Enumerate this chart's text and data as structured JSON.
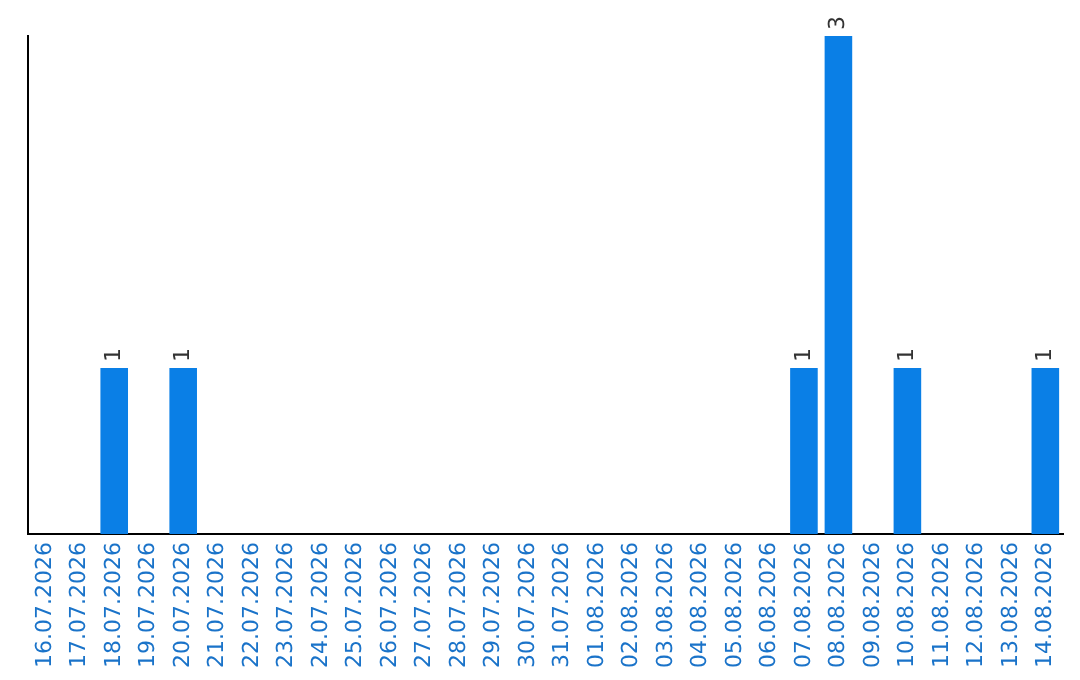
{
  "chart_data": {
    "type": "bar",
    "categories": [
      "16.07.2026",
      "17.07.2026",
      "18.07.2026",
      "19.07.2026",
      "20.07.2026",
      "21.07.2026",
      "22.07.2026",
      "23.07.2026",
      "24.07.2026",
      "25.07.2026",
      "26.07.2026",
      "27.07.2026",
      "28.07.2026",
      "29.07.2026",
      "30.07.2026",
      "31.07.2026",
      "01.08.2026",
      "02.08.2026",
      "03.08.2026",
      "04.08.2026",
      "05.08.2026",
      "06.08.2026",
      "07.08.2026",
      "08.08.2026",
      "09.08.2026",
      "10.08.2026",
      "11.08.2026",
      "12.08.2026",
      "13.08.2026",
      "14.08.2026"
    ],
    "values": [
      0,
      0,
      1,
      0,
      1,
      0,
      0,
      0,
      0,
      0,
      0,
      0,
      0,
      0,
      0,
      0,
      0,
      0,
      0,
      0,
      0,
      0,
      1,
      3,
      0,
      1,
      0,
      0,
      0,
      1
    ],
    "value_labels": [
      null,
      null,
      "1",
      null,
      "1",
      null,
      null,
      null,
      null,
      null,
      null,
      null,
      null,
      null,
      null,
      null,
      null,
      null,
      null,
      null,
      null,
      null,
      "1",
      "3",
      null,
      "1",
      null,
      null,
      null,
      "1"
    ],
    "color": "#0a7fe6",
    "tick_labels": "x",
    "grid": false,
    "legend": false
  }
}
